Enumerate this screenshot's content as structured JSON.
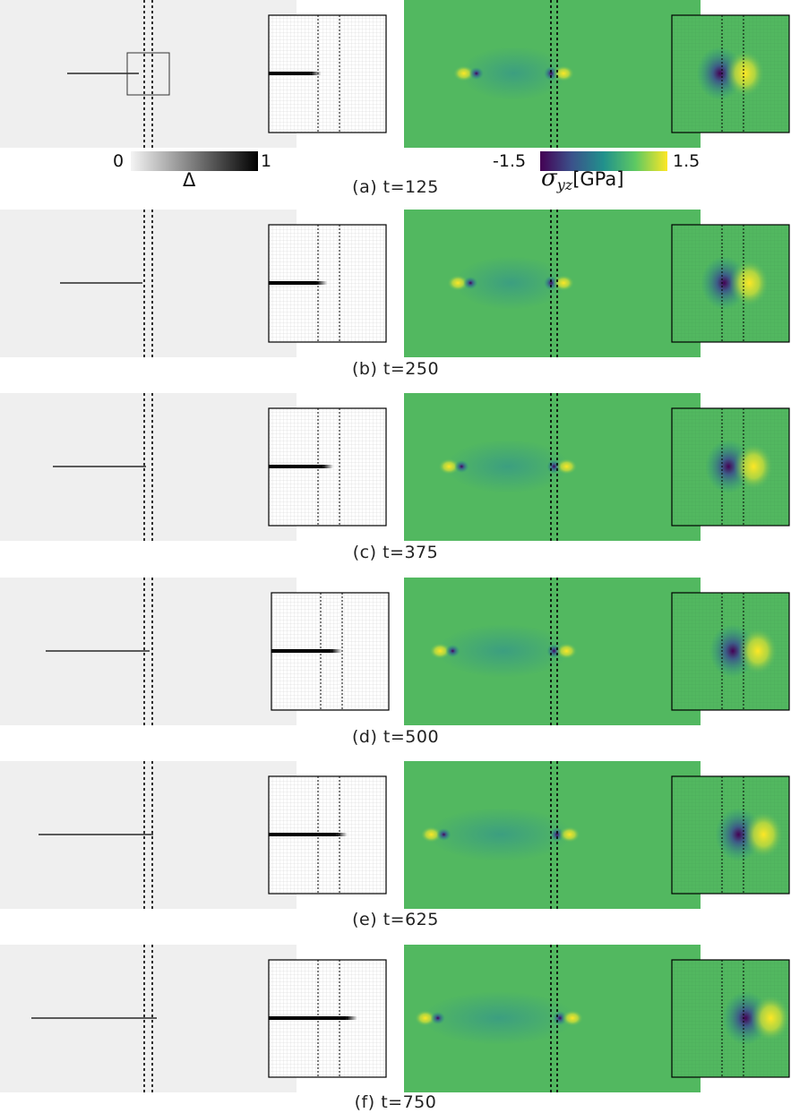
{
  "figure": {
    "panels": [
      {
        "id": "a",
        "caption": "(a) t=125",
        "time": 125,
        "crack_tip_fraction": 0.42,
        "stress_left_tip_fraction": 0.22,
        "stress_right_tip_fraction": 0.52
      },
      {
        "id": "b",
        "caption": "(b) t=250",
        "time": 250,
        "crack_tip_fraction": 0.48,
        "stress_left_tip_fraction": 0.2,
        "stress_right_tip_fraction": 0.52
      },
      {
        "id": "c",
        "caption": "(c) t=375",
        "time": 375,
        "crack_tip_fraction": 0.54,
        "stress_left_tip_fraction": 0.17,
        "stress_right_tip_fraction": 0.53
      },
      {
        "id": "d",
        "caption": "(d) t=500",
        "time": 500,
        "crack_tip_fraction": 0.6,
        "stress_left_tip_fraction": 0.14,
        "stress_right_tip_fraction": 0.53
      },
      {
        "id": "e",
        "caption": "(e) t=625",
        "time": 625,
        "crack_tip_fraction": 0.68,
        "stress_left_tip_fraction": 0.11,
        "stress_right_tip_fraction": 0.54
      },
      {
        "id": "f",
        "caption": "(f) t=750",
        "time": 750,
        "crack_tip_fraction": 0.78,
        "stress_left_tip_fraction": 0.09,
        "stress_right_tip_fraction": 0.55
      }
    ],
    "damage_colorbar": {
      "min_label": "0",
      "max_label": "1",
      "symbol": "Δ",
      "colors": [
        "#f4f4f4",
        "#000000"
      ]
    },
    "stress_colorbar": {
      "min_label": "-1.5",
      "max_label": "1.5",
      "symbol": "σ",
      "subscript": "yz",
      "unit": "[GPa]",
      "colors": [
        "#440154",
        "#3b528b",
        "#21918c",
        "#5ec962",
        "#fde725"
      ]
    },
    "colors": {
      "damage_background": "#efefef",
      "stress_background": "#52b860",
      "crack": "#000000",
      "interface_lines": "#000000"
    }
  }
}
